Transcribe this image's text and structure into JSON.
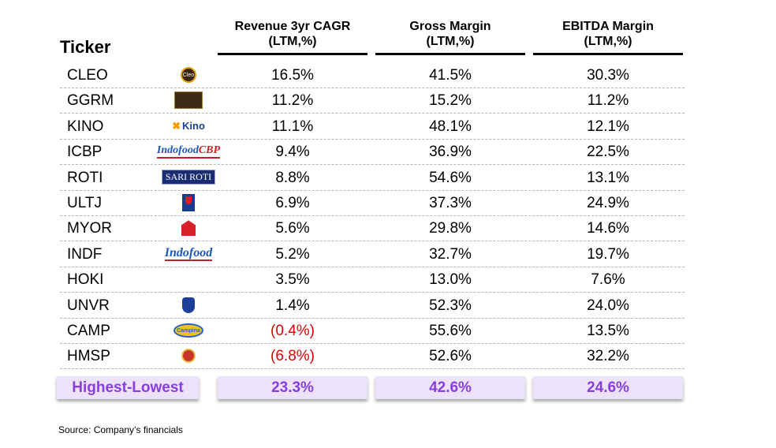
{
  "header": {
    "ticker": "Ticker",
    "col1_line1": "Revenue 3yr CAGR",
    "col1_line2": "(LTM,%)",
    "col2_line1": "Gross Margin",
    "col2_line2": "(LTM,%)",
    "col3_line1": "EBITDA Margin",
    "col3_line2": "(LTM,%)"
  },
  "rows": [
    {
      "ticker": "CLEO",
      "logo": "cleo-logo",
      "logo_text": "Cleo",
      "rev": "16.5%",
      "gm": "41.5%",
      "ebitda": "30.3%",
      "neg": false
    },
    {
      "ticker": "GGRM",
      "logo": "gudang-garam-logo",
      "rev": "11.2%",
      "gm": "15.2%",
      "ebitda": "11.2%",
      "neg": false
    },
    {
      "ticker": "KINO",
      "logo": "kino-logo",
      "logo_text": "Kino",
      "rev": "11.1%",
      "gm": "48.1%",
      "ebitda": "12.1%",
      "neg": false
    },
    {
      "ticker": "ICBP",
      "logo": "indofood-cbp-logo",
      "logo_text": "Indofood",
      "logo_text2": "CBP",
      "rev": "9.4%",
      "gm": "36.9%",
      "ebitda": "22.5%",
      "neg": false
    },
    {
      "ticker": "ROTI",
      "logo": "sari-roti-logo",
      "logo_text": "SARI ROTI",
      "rev": "8.8%",
      "gm": "54.6%",
      "ebitda": "13.1%",
      "neg": false
    },
    {
      "ticker": "ULTJ",
      "logo": "ultrajaya-logo",
      "rev": "6.9%",
      "gm": "37.3%",
      "ebitda": "24.9%",
      "neg": false
    },
    {
      "ticker": "MYOR",
      "logo": "mayora-logo",
      "rev": "5.6%",
      "gm": "29.8%",
      "ebitda": "14.6%",
      "neg": false
    },
    {
      "ticker": "INDF",
      "logo": "indofood-logo",
      "logo_text": "Indofood",
      "rev": "5.2%",
      "gm": "32.7%",
      "ebitda": "19.7%",
      "neg": false
    },
    {
      "ticker": "HOKI",
      "logo": "",
      "rev": "3.5%",
      "gm": "13.0%",
      "ebitda": "7.6%",
      "neg": false
    },
    {
      "ticker": "UNVR",
      "logo": "unilever-logo",
      "rev": "1.4%",
      "gm": "52.3%",
      "ebitda": "24.0%",
      "neg": false
    },
    {
      "ticker": "CAMP",
      "logo": "campina-logo",
      "logo_text": "Campina",
      "rev": "(0.4%)",
      "gm": "55.6%",
      "ebitda": "13.5%",
      "neg": true
    },
    {
      "ticker": "HMSP",
      "logo": "sampoerna-logo",
      "rev": "(6.8%)",
      "gm": "52.6%",
      "ebitda": "32.2%",
      "neg": true
    }
  ],
  "summary": {
    "label": "Highest-Lowest",
    "rev": "23.3%",
    "gm": "42.6%",
    "ebitda": "24.6%"
  },
  "source": "Source: Company’s financials",
  "colors": {
    "negative": "#e00000",
    "summary_text": "#8a3ddd",
    "summary_fill": "#ece3fb"
  },
  "chart_data": {
    "type": "table",
    "columns": [
      "Ticker",
      "Revenue 3yr CAGR (LTM,%)",
      "Gross Margin (LTM,%)",
      "EBITDA Margin (LTM,%)"
    ],
    "rows": [
      [
        "CLEO",
        16.5,
        41.5,
        30.3
      ],
      [
        "GGRM",
        11.2,
        15.2,
        11.2
      ],
      [
        "KINO",
        11.1,
        48.1,
        12.1
      ],
      [
        "ICBP",
        9.4,
        36.9,
        22.5
      ],
      [
        "ROTI",
        8.8,
        54.6,
        13.1
      ],
      [
        "ULTJ",
        6.9,
        37.3,
        24.9
      ],
      [
        "MYOR",
        5.6,
        29.8,
        14.6
      ],
      [
        "INDF",
        5.2,
        32.7,
        19.7
      ],
      [
        "HOKI",
        3.5,
        13.0,
        7.6
      ],
      [
        "UNVR",
        1.4,
        52.3,
        24.0
      ],
      [
        "CAMP",
        -0.4,
        55.6,
        13.5
      ],
      [
        "HMSP",
        -6.8,
        52.6,
        32.2
      ]
    ],
    "summary_row": [
      "Highest-Lowest",
      23.3,
      42.6,
      24.6
    ]
  }
}
